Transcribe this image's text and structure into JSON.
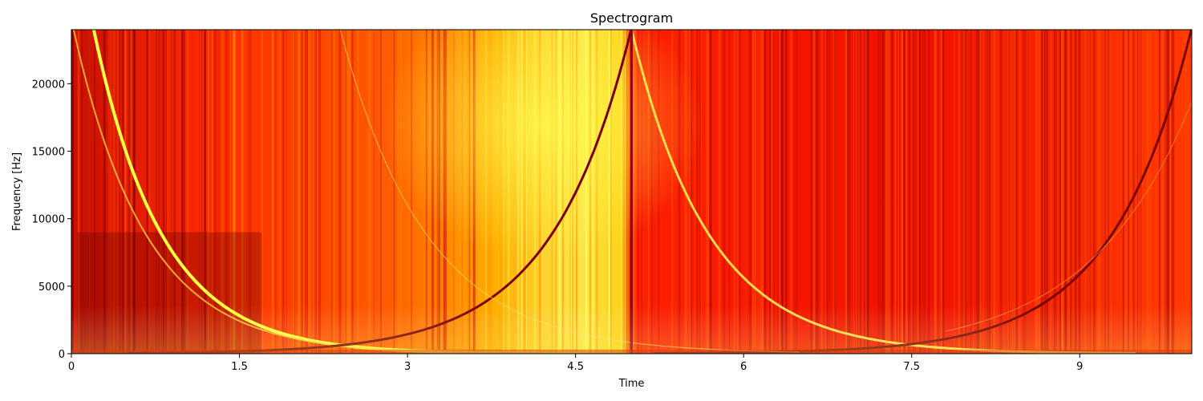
{
  "chart_data": {
    "type": "heatmap",
    "title": "Spectrogram",
    "xlabel": "Time",
    "ylabel": "Frequency [Hz]",
    "xlim": [
      0,
      10
    ],
    "ylim": [
      0,
      24000
    ],
    "x_ticks": [
      0,
      1.5,
      3,
      4.5,
      6,
      7.5,
      9
    ],
    "x_tick_labels": [
      "0",
      "1.5",
      "3",
      "4.5",
      "6",
      "7.5",
      "9"
    ],
    "y_ticks": [
      0,
      5000,
      10000,
      15000,
      20000
    ],
    "y_tick_labels": [
      "0",
      "5000",
      "10000",
      "15000",
      "20000"
    ],
    "colormap": "hot",
    "colors": {
      "low": "#7a0000",
      "mid": "#ff2a00",
      "high": "#ffff33"
    },
    "grid": false,
    "features": {
      "impulse_time": 5.0,
      "decaying_chirp_start_time": 0.2,
      "rising_chirp_end_time": 5.0,
      "decaying_chirp2_start_time": 5.0,
      "rising_chirp2_end_time": 10.0
    }
  }
}
